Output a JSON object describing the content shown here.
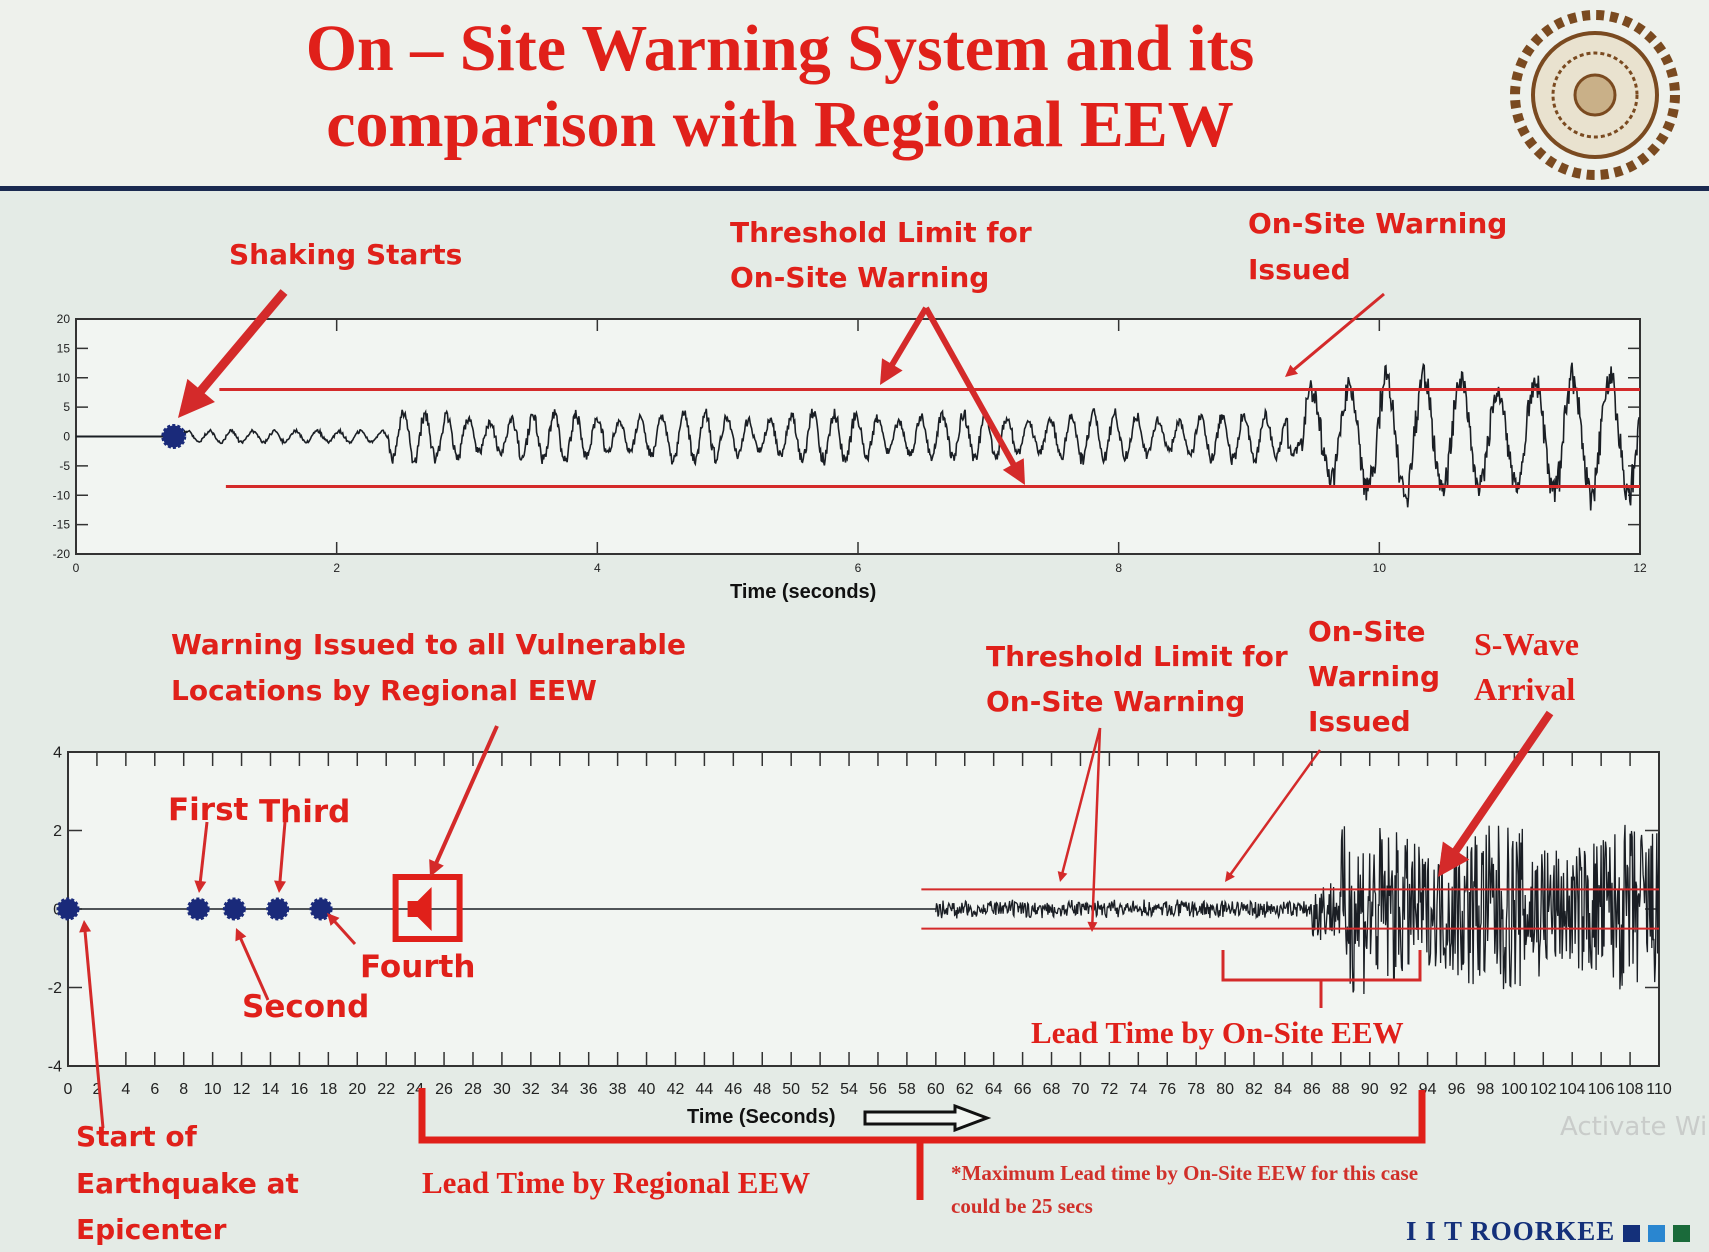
{
  "slide": {
    "title_line1": "On – Site Warning System and its",
    "title_line2": "comparison with Regional EEW",
    "brand": "I I T ROORKEE",
    "watermark": "Activate Wi",
    "colors": {
      "title": "#e0201a",
      "threshold": "#d42a2a",
      "signal": "#1a1e24",
      "marker": "#1a2a7a",
      "brand": "#14307a"
    }
  },
  "chart_data": [
    {
      "type": "line",
      "xlabel": "Time (seconds)",
      "xlim": [
        0,
        12
      ],
      "ylim": [
        -20,
        20
      ],
      "xticks": [
        "0",
        "2",
        "4",
        "6",
        "8",
        "10",
        "12"
      ],
      "yticks": [
        "20",
        "15",
        "10",
        "5",
        "0",
        "-5",
        "-10",
        "-15",
        "-20"
      ],
      "thresholds": [
        {
          "y": 8,
          "x_start": 1.1
        },
        {
          "y": -8.5,
          "x_start": 1.15
        }
      ],
      "shaking_start_marker": {
        "x": 0.75,
        "y": 0
      },
      "warning_issued_x": 9.4,
      "annotations": {
        "shaking": "Shaking Starts",
        "threshold_1": "Threshold Limit for",
        "threshold_2": "On-Site Warning",
        "issued_1": "On-Site Warning",
        "issued_2": "Issued"
      }
    },
    {
      "type": "line",
      "xlabel": "Time (Seconds)",
      "xlim": [
        0,
        110
      ],
      "ylim": [
        -4,
        4
      ],
      "xticks": [
        "0",
        "2",
        "4",
        "6",
        "8",
        "10",
        "12",
        "14",
        "16",
        "18",
        "20",
        "22",
        "24",
        "26",
        "28",
        "30",
        "32",
        "34",
        "36",
        "38",
        "40",
        "42",
        "44",
        "46",
        "48",
        "50",
        "52",
        "54",
        "56",
        "58",
        "60",
        "62",
        "64",
        "66",
        "68",
        "70",
        "72",
        "74",
        "76",
        "78",
        "80",
        "82",
        "84",
        "86",
        "88",
        "90",
        "92",
        "94",
        "96",
        "98",
        "100",
        "102",
        "104",
        "106",
        "108",
        "110"
      ],
      "yticks": [
        "4",
        "2",
        "0",
        "-2",
        "-4"
      ],
      "thresholds": [
        {
          "y": 0.5,
          "x_start": 59
        },
        {
          "y": -0.5,
          "x_start": 59
        }
      ],
      "station_markers": [
        {
          "x": 0,
          "label": "Start of Earthquake at Epicenter"
        },
        {
          "x": 9,
          "label": "First"
        },
        {
          "x": 11.5,
          "label": "Second"
        },
        {
          "x": 14.5,
          "label": "Third"
        },
        {
          "x": 17.5,
          "label": "Fourth"
        }
      ],
      "regional_warning_x": 25,
      "onsite_warning_x": 80,
      "s_wave_arrival_x": 94,
      "lead_time_regional": [
        24,
        93
      ],
      "lead_time_onsite": [
        80,
        94
      ],
      "annotations": {
        "regional_1": "Warning Issued to all Vulnerable",
        "regional_2": "Locations by Regional EEW",
        "threshold_1": "Threshold Limit for",
        "threshold_2": "On-Site Warning",
        "issued_1": "On-Site",
        "issued_2": "Warning",
        "issued_3": "Issued",
        "swave_1": "S-Wave",
        "swave_2": "Arrival",
        "first": "First",
        "second": "Second",
        "third": "Third",
        "fourth": "Fourth",
        "start_1": "Start of",
        "start_2": "Earthquake at",
        "start_3": "Epicenter",
        "lead_onsite": "Lead Time by On-Site EEW",
        "lead_regional": "Lead Time by Regional EEW",
        "note_1": "*Maximum Lead time by On-Site EEW for this case",
        "note_2": "could be 25 secs"
      }
    }
  ]
}
